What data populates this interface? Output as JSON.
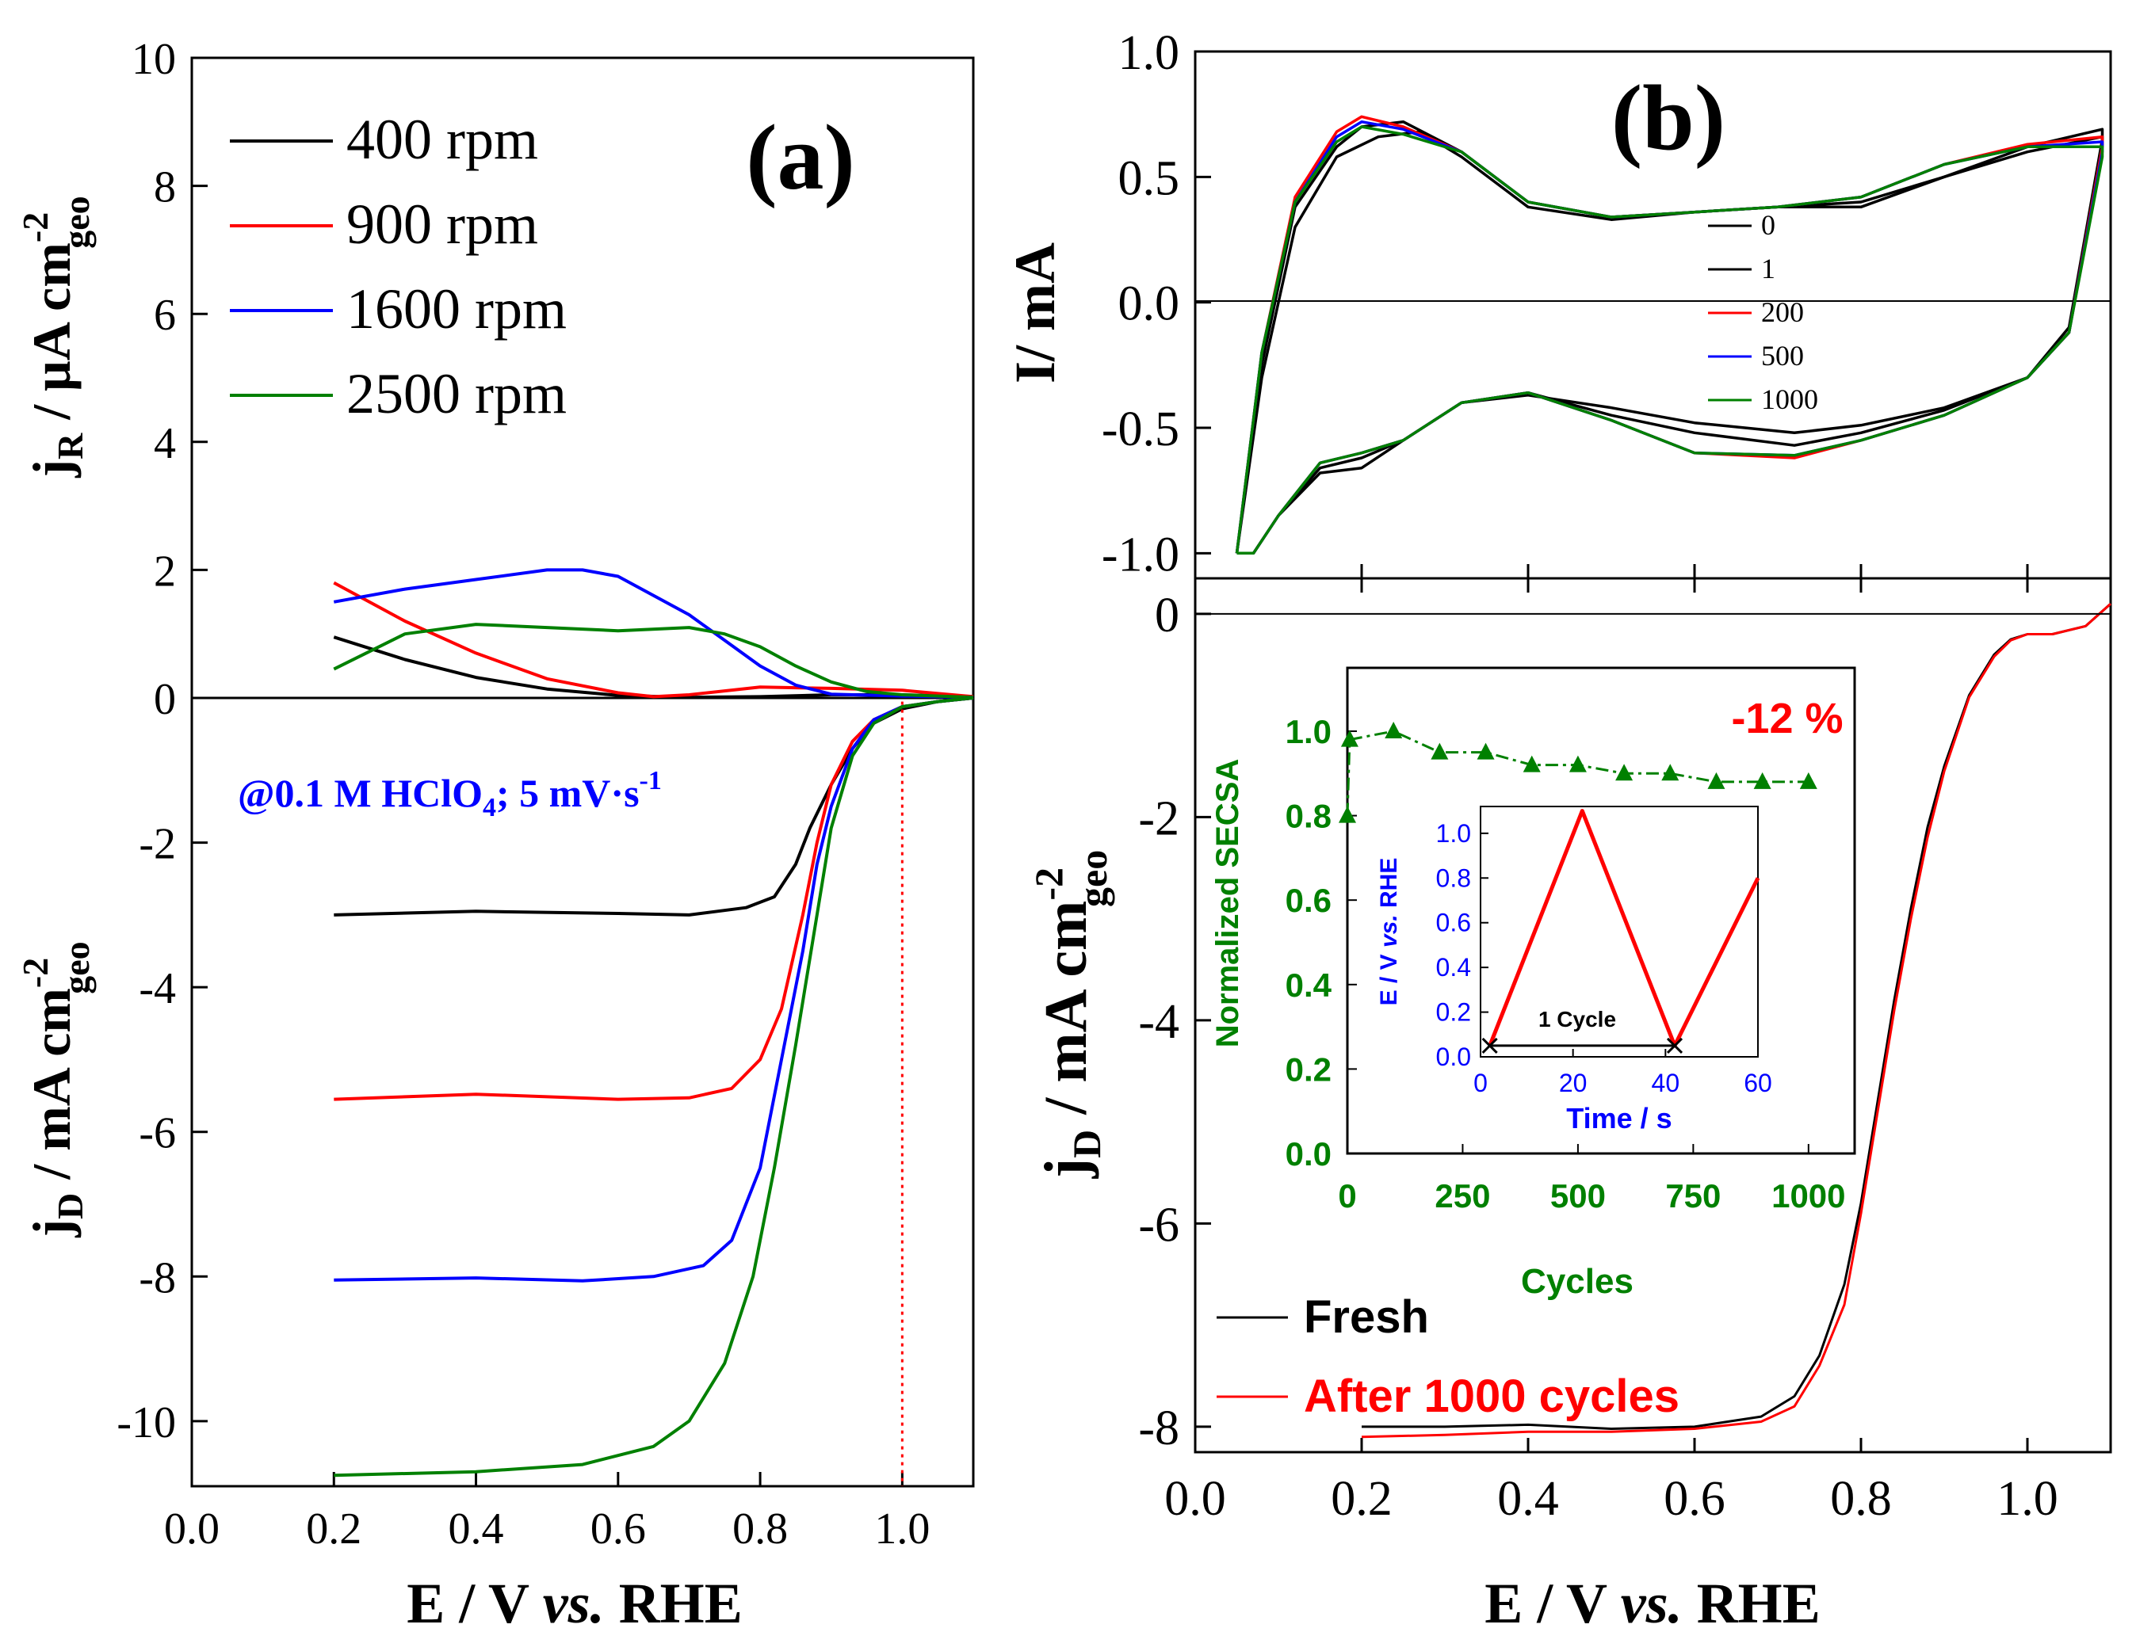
{
  "colors": {
    "black": "#000000",
    "red": "#ff0000",
    "blue": "#0000ff",
    "green": "#008000"
  },
  "chart_data": [
    {
      "id": "a",
      "type": "line",
      "panel_label": "(a)",
      "xlabel": {
        "pre": "E / V ",
        "em": "vs.",
        "post": " RHE"
      },
      "xlim": [
        0.0,
        1.1
      ],
      "x_ticks": [
        "0.0",
        "0.2",
        "0.4",
        "0.6",
        "0.8",
        "1.0"
      ],
      "x_tick_values": [
        0.0,
        0.2,
        0.4,
        0.6,
        0.8,
        1.0
      ],
      "upper": {
        "ylabel": {
          "main": "j",
          "sub": "R",
          "unit": " / μA cm",
          "sup": "-2",
          "sub2": "geo"
        },
        "ylim": [
          0,
          10
        ],
        "y_ticks": [
          "0",
          "2",
          "4",
          "6",
          "8",
          "10"
        ],
        "y_tick_values": [
          0,
          2,
          4,
          6,
          8,
          10
        ],
        "series": [
          {
            "name": "400 rpm",
            "color": "#000000",
            "x": [
              0.2,
              0.3,
              0.4,
              0.5,
              0.6,
              0.7,
              0.8,
              0.9,
              1.0,
              1.1
            ],
            "y": [
              0.95,
              0.6,
              0.32,
              0.14,
              0.04,
              0.01,
              0.02,
              0.05,
              0.05,
              0.02
            ]
          },
          {
            "name": "900 rpm",
            "color": "#ff0000",
            "x": [
              0.2,
              0.3,
              0.4,
              0.5,
              0.6,
              0.65,
              0.7,
              0.8,
              0.9,
              1.0,
              1.1
            ],
            "y": [
              1.8,
              1.2,
              0.7,
              0.3,
              0.08,
              0.02,
              0.05,
              0.17,
              0.15,
              0.12,
              0.02
            ]
          },
          {
            "name": "1600 rpm",
            "color": "#0000ff",
            "x": [
              0.2,
              0.3,
              0.4,
              0.5,
              0.55,
              0.6,
              0.7,
              0.75,
              0.8,
              0.85,
              0.9,
              1.0,
              1.1
            ],
            "y": [
              1.5,
              1.7,
              1.85,
              2.0,
              2.0,
              1.9,
              1.3,
              0.9,
              0.5,
              0.2,
              0.06,
              0.03,
              0.01
            ]
          },
          {
            "name": "2500 rpm",
            "color": "#008000",
            "x": [
              0.2,
              0.3,
              0.4,
              0.5,
              0.6,
              0.7,
              0.75,
              0.8,
              0.85,
              0.9,
              0.95,
              1.0,
              1.1
            ],
            "y": [
              0.45,
              1.0,
              1.15,
              1.1,
              1.05,
              1.1,
              1.0,
              0.8,
              0.5,
              0.25,
              0.1,
              0.05,
              0.01
            ]
          }
        ]
      },
      "lower": {
        "ylabel": {
          "main": "j",
          "sub": "D",
          "unit": " / mA cm",
          "sup": "-2",
          "sub2": "geo"
        },
        "ylim": [
          -10.9,
          0
        ],
        "y_ticks": [
          "-10",
          "-8",
          "-6",
          "-4",
          "-2"
        ],
        "y_tick_values": [
          -10,
          -8,
          -6,
          -4,
          -2
        ],
        "annotation": {
          "pre": "@0.1 M HClO",
          "sub": "4",
          "mid": "; 5 mV·s",
          "sup": "-1"
        },
        "vline_x": 1.0,
        "series": [
          {
            "name": "400 rpm",
            "color": "#000000",
            "x": [
              0.2,
              0.4,
              0.6,
              0.7,
              0.78,
              0.82,
              0.85,
              0.87,
              0.9,
              0.93,
              0.96,
              1.0,
              1.05,
              1.1
            ],
            "y": [
              -3.0,
              -2.95,
              -2.98,
              -3.0,
              -2.9,
              -2.75,
              -2.3,
              -1.8,
              -1.2,
              -0.7,
              -0.35,
              -0.15,
              -0.05,
              0.0
            ]
          },
          {
            "name": "900 rpm",
            "color": "#ff0000",
            "x": [
              0.2,
              0.4,
              0.6,
              0.7,
              0.76,
              0.8,
              0.83,
              0.86,
              0.88,
              0.9,
              0.93,
              0.96,
              1.0,
              1.05,
              1.1
            ],
            "y": [
              -5.55,
              -5.48,
              -5.55,
              -5.53,
              -5.4,
              -5.0,
              -4.3,
              -3.0,
              -2.0,
              -1.2,
              -0.6,
              -0.3,
              -0.12,
              -0.05,
              0.0
            ]
          },
          {
            "name": "1600 rpm",
            "color": "#0000ff",
            "x": [
              0.2,
              0.4,
              0.55,
              0.65,
              0.72,
              0.76,
              0.8,
              0.83,
              0.86,
              0.88,
              0.9,
              0.93,
              0.96,
              1.0,
              1.05,
              1.1
            ],
            "y": [
              -8.05,
              -8.02,
              -8.06,
              -8.0,
              -7.85,
              -7.5,
              -6.5,
              -5.0,
              -3.5,
              -2.3,
              -1.5,
              -0.7,
              -0.3,
              -0.12,
              -0.05,
              0.0
            ]
          },
          {
            "name": "2500 rpm",
            "color": "#008000",
            "x": [
              0.2,
              0.4,
              0.55,
              0.65,
              0.7,
              0.75,
              0.79,
              0.82,
              0.85,
              0.88,
              0.9,
              0.93,
              0.96,
              1.0,
              1.05,
              1.1
            ],
            "y": [
              -10.75,
              -10.7,
              -10.6,
              -10.35,
              -10.0,
              -9.2,
              -8.0,
              -6.5,
              -4.8,
              -3.0,
              -1.8,
              -0.8,
              -0.35,
              -0.12,
              -0.05,
              0.0
            ]
          }
        ]
      }
    },
    {
      "id": "b-cv",
      "type": "line",
      "panel_label": "(b)",
      "ylabel": "I/ mA",
      "xlim": [
        0.0,
        1.1
      ],
      "ylim": [
        -1.1,
        1.0
      ],
      "y_ticks": [
        "1.0",
        "0.5",
        "0.0",
        "-0.5",
        "-1.0"
      ],
      "y_tick_values": [
        1.0,
        0.5,
        0.0,
        -0.5,
        -1.0
      ],
      "legend": [
        "0",
        "1",
        "200",
        "500",
        "1000"
      ],
      "series": [
        {
          "name": "0",
          "color": "#000000",
          "x": [
            0.05,
            0.08,
            0.12,
            0.17,
            0.22,
            0.27,
            0.32,
            0.4,
            0.5,
            0.6,
            0.7,
            0.8,
            0.9,
            1.0,
            1.09,
            1.09,
            1.05,
            1.0,
            0.9,
            0.8,
            0.72,
            0.6,
            0.5,
            0.4,
            0.32,
            0.25,
            0.2,
            0.15,
            0.1,
            0.07,
            0.05
          ],
          "y": [
            -1.0,
            -0.3,
            0.3,
            0.58,
            0.66,
            0.68,
            0.58,
            0.38,
            0.33,
            0.36,
            0.38,
            0.38,
            0.5,
            0.62,
            0.69,
            0.65,
            -0.1,
            -0.3,
            -0.42,
            -0.49,
            -0.52,
            -0.48,
            -0.42,
            -0.37,
            -0.4,
            -0.55,
            -0.66,
            -0.68,
            -0.85,
            -1.0,
            -1.0
          ]
        },
        {
          "name": "1",
          "color": "#000000",
          "x": [
            0.05,
            0.08,
            0.12,
            0.17,
            0.2,
            0.25,
            0.32,
            0.4,
            0.5,
            0.6,
            0.7,
            0.8,
            0.9,
            1.0,
            1.09,
            1.09,
            1.05,
            1.0,
            0.9,
            0.8,
            0.72,
            0.6,
            0.5,
            0.4,
            0.32,
            0.25,
            0.2,
            0.15,
            0.1,
            0.07,
            0.05
          ],
          "y": [
            -1.0,
            -0.25,
            0.38,
            0.62,
            0.7,
            0.72,
            0.6,
            0.4,
            0.34,
            0.36,
            0.38,
            0.4,
            0.5,
            0.6,
            0.66,
            0.62,
            -0.12,
            -0.3,
            -0.43,
            -0.52,
            -0.57,
            -0.52,
            -0.45,
            -0.36,
            -0.4,
            -0.55,
            -0.62,
            -0.66,
            -0.85,
            -1.0,
            -1.0
          ]
        },
        {
          "name": "200",
          "color": "#ff0000",
          "x": [
            0.05,
            0.08,
            0.12,
            0.17,
            0.2,
            0.25,
            0.32,
            0.4,
            0.5,
            0.6,
            0.7,
            0.8,
            0.9,
            1.0,
            1.09,
            1.09,
            1.05,
            1.0,
            0.9,
            0.8,
            0.72,
            0.6,
            0.5,
            0.4,
            0.32,
            0.25,
            0.2,
            0.15,
            0.1,
            0.07,
            0.05
          ],
          "y": [
            -1.0,
            -0.2,
            0.42,
            0.68,
            0.74,
            0.7,
            0.6,
            0.4,
            0.34,
            0.36,
            0.38,
            0.42,
            0.55,
            0.63,
            0.66,
            0.62,
            -0.12,
            -0.3,
            -0.45,
            -0.55,
            -0.62,
            -0.6,
            -0.47,
            -0.36,
            -0.4,
            -0.55,
            -0.6,
            -0.64,
            -0.85,
            -1.0,
            -1.0
          ]
        },
        {
          "name": "500",
          "color": "#0000ff",
          "x": [
            0.05,
            0.08,
            0.12,
            0.17,
            0.2,
            0.25,
            0.32,
            0.4,
            0.5,
            0.6,
            0.7,
            0.8,
            0.9,
            1.0,
            1.09,
            1.09,
            1.05,
            1.0,
            0.9,
            0.8,
            0.72,
            0.6,
            0.5,
            0.4,
            0.32,
            0.25,
            0.2,
            0.15,
            0.1,
            0.07,
            0.05
          ],
          "y": [
            -1.0,
            -0.2,
            0.4,
            0.66,
            0.72,
            0.69,
            0.6,
            0.4,
            0.34,
            0.36,
            0.38,
            0.42,
            0.55,
            0.62,
            0.64,
            0.6,
            -0.12,
            -0.3,
            -0.45,
            -0.55,
            -0.61,
            -0.6,
            -0.47,
            -0.36,
            -0.4,
            -0.55,
            -0.6,
            -0.64,
            -0.85,
            -1.0,
            -1.0
          ]
        },
        {
          "name": "1000",
          "color": "#008000",
          "x": [
            0.05,
            0.08,
            0.12,
            0.17,
            0.2,
            0.25,
            0.32,
            0.4,
            0.5,
            0.6,
            0.7,
            0.8,
            0.9,
            1.0,
            1.09,
            1.09,
            1.05,
            1.0,
            0.9,
            0.8,
            0.72,
            0.6,
            0.5,
            0.4,
            0.32,
            0.25,
            0.2,
            0.15,
            0.1,
            0.07,
            0.05
          ],
          "y": [
            -1.0,
            -0.2,
            0.4,
            0.64,
            0.7,
            0.67,
            0.6,
            0.4,
            0.34,
            0.36,
            0.38,
            0.42,
            0.55,
            0.62,
            0.62,
            0.58,
            -0.12,
            -0.3,
            -0.45,
            -0.55,
            -0.61,
            -0.6,
            -0.47,
            -0.36,
            -0.4,
            -0.55,
            -0.6,
            -0.64,
            -0.85,
            -1.0,
            -1.0
          ]
        }
      ]
    },
    {
      "id": "b-orr",
      "type": "line",
      "ylabel": {
        "main": "j",
        "sub": "D",
        "unit": " / mA cm",
        "sup": "-2",
        "sub2": "geo"
      },
      "xlabel": {
        "pre": "E / V ",
        "em": "vs.",
        "post": " RHE"
      },
      "xlim": [
        0.0,
        1.1
      ],
      "ylim": [
        -8.25,
        0.35
      ],
      "x_ticks": [
        "0.0",
        "0.2",
        "0.4",
        "0.6",
        "0.8",
        "1.0"
      ],
      "x_tick_values": [
        0.0,
        0.2,
        0.4,
        0.6,
        0.8,
        1.0
      ],
      "y_ticks": [
        "0",
        "-2",
        "-4",
        "-6",
        "-8"
      ],
      "y_tick_values": [
        0,
        -2,
        -4,
        -6,
        -8
      ],
      "legend": [
        "Fresh",
        "After 1000 cycles"
      ],
      "series": [
        {
          "name": "Fresh",
          "color": "#000000",
          "x": [
            0.2,
            0.3,
            0.4,
            0.5,
            0.6,
            0.68,
            0.72,
            0.75,
            0.78,
            0.8,
            0.82,
            0.84,
            0.86,
            0.88,
            0.9,
            0.93,
            0.96,
            0.98,
            1.0,
            1.03,
            1.07,
            1.1
          ],
          "y": [
            -8.0,
            -8.0,
            -7.98,
            -8.02,
            -8.0,
            -7.9,
            -7.7,
            -7.3,
            -6.6,
            -5.8,
            -4.8,
            -3.8,
            -2.9,
            -2.1,
            -1.5,
            -0.8,
            -0.4,
            -0.25,
            -0.2,
            -0.2,
            -0.12,
            0.1
          ]
        },
        {
          "name": "After 1000 cycles",
          "color": "#ff0000",
          "x": [
            0.2,
            0.3,
            0.4,
            0.5,
            0.6,
            0.68,
            0.72,
            0.75,
            0.78,
            0.8,
            0.82,
            0.84,
            0.86,
            0.88,
            0.9,
            0.93,
            0.96,
            0.98,
            1.0,
            1.03,
            1.07,
            1.1
          ],
          "y": [
            -8.1,
            -8.08,
            -8.05,
            -8.05,
            -8.02,
            -7.95,
            -7.8,
            -7.4,
            -6.8,
            -5.9,
            -4.9,
            -3.9,
            -3.0,
            -2.2,
            -1.55,
            -0.82,
            -0.42,
            -0.26,
            -0.2,
            -0.2,
            -0.12,
            0.1
          ]
        }
      ]
    },
    {
      "id": "b-inset-secsa",
      "type": "line",
      "xlabel": "Cycles",
      "ylabel": "Normalized SECSA",
      "annotation": "-12 %",
      "xlim": [
        0,
        1100
      ],
      "ylim": [
        0.0,
        1.15
      ],
      "x_ticks": [
        "0",
        "250",
        "500",
        "750",
        "1000"
      ],
      "x_tick_values": [
        0,
        250,
        500,
        750,
        1000
      ],
      "y_ticks": [
        "0.0",
        "0.2",
        "0.4",
        "0.6",
        "0.8",
        "1.0"
      ],
      "y_tick_values": [
        0.0,
        0.2,
        0.4,
        0.6,
        0.8,
        1.0
      ],
      "series": [
        {
          "color": "#008000",
          "x": [
            0,
            5,
            100,
            200,
            300,
            400,
            500,
            600,
            700,
            800,
            900,
            1000
          ],
          "y": [
            0.8,
            0.98,
            1.0,
            0.95,
            0.95,
            0.92,
            0.92,
            0.9,
            0.9,
            0.88,
            0.88,
            0.88
          ]
        }
      ]
    },
    {
      "id": "b-inset-potential",
      "type": "line",
      "xlabel": "Time / s",
      "ylabel": {
        "pre": "E / V ",
        "em": "vs.",
        "post": " RHE"
      },
      "annotation": "1 Cycle",
      "xlim": [
        0,
        60
      ],
      "ylim": [
        0.0,
        1.12
      ],
      "x_ticks": [
        "0",
        "20",
        "40",
        "60"
      ],
      "x_tick_values": [
        0,
        20,
        40,
        60
      ],
      "y_ticks": [
        "0.0",
        "0.2",
        "0.4",
        "0.6",
        "0.8",
        "1.0"
      ],
      "y_tick_values": [
        0.0,
        0.2,
        0.4,
        0.6,
        0.8,
        1.0
      ],
      "series": [
        {
          "color": "#ff0000",
          "x": [
            2,
            22,
            42,
            60
          ],
          "y": [
            0.05,
            1.1,
            0.05,
            0.8
          ]
        }
      ],
      "cycle_marker_x": [
        2,
        42
      ],
      "cycle_marker_y": 0.05
    }
  ]
}
